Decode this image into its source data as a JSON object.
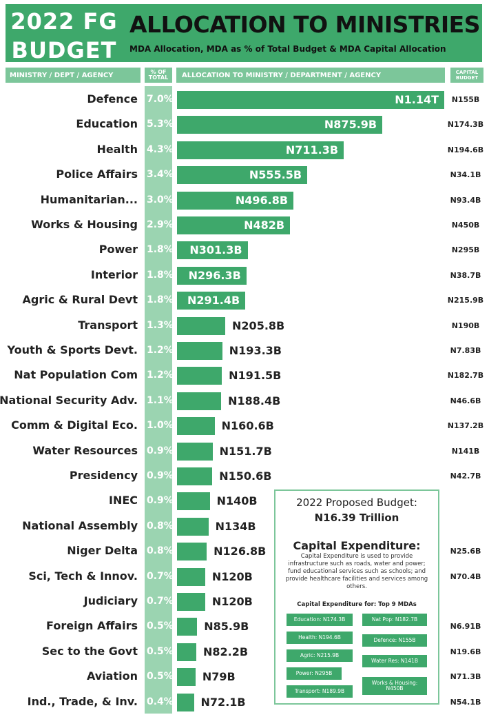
{
  "header": {
    "badge_line1": "2022 FG",
    "badge_line2": "BUDGET",
    "title": "ALLOCATION TO MINISTRIES",
    "subtitle": "MDA Allocation, MDA as % of Total Budget & MDA Capital Allocation"
  },
  "columns": {
    "ministry": "MINISTRY / DEPT / AGENCY",
    "pct": "% OF TOTAL",
    "allocation": "ALLOCATION TO MINISTRY / DEPARTMENT / AGENCY",
    "capital": "CAPITAL BUDGET"
  },
  "colors": {
    "bar": "#3ea86b",
    "header_band": "#7cc69a",
    "pct_strip": "#9bd4b1"
  },
  "chart_data": {
    "type": "bar",
    "orientation": "horizontal",
    "title": "ALLOCATION TO MINISTRIES",
    "unit": "billion naira",
    "xlim": [
      0,
      1140
    ],
    "categories": [
      "Defence",
      "Education",
      "Health",
      "Police Affairs",
      "Humanitarian...",
      "Works & Housing",
      "Power",
      "Interior",
      "Agric & Rural Devt",
      "Transport",
      "Youth & Sports Devt.",
      "Nat Population Com",
      "National Security Adv.",
      "Comm & Digital Eco.",
      "Water Resources",
      "Presidency",
      "INEC",
      "National Assembly",
      "Niger Delta",
      "Sci, Tech & Innov.",
      "Judiciary",
      "Foreign Affairs",
      "Sec to the Govt",
      "Aviation",
      "Ind., Trade, & Inv."
    ],
    "values": [
      1140,
      875.9,
      711.3,
      555.5,
      496.8,
      482,
      301.3,
      296.3,
      291.4,
      205.8,
      193.3,
      191.5,
      188.4,
      160.6,
      151.7,
      150.6,
      140,
      134,
      126.8,
      120,
      120,
      85.9,
      82.2,
      79,
      72.1
    ],
    "value_labels": [
      "N1.14T",
      "N875.9B",
      "N711.3B",
      "N555.5B",
      "N496.8B",
      "N482B",
      "N301.3B",
      "N296.3B",
      "N291.4B",
      "N205.8B",
      "N193.3B",
      "N191.5B",
      "N188.4B",
      "N160.6B",
      "N151.7B",
      "N150.6B",
      "N140B",
      "N134B",
      "N126.8B",
      "N120B",
      "N120B",
      "N85.9B",
      "N82.2B",
      "N79B",
      "N72.1B"
    ],
    "pct_of_total": [
      "7.0%",
      "5.3%",
      "4.3%",
      "3.4%",
      "3.0%",
      "2.9%",
      "1.8%",
      "1.8%",
      "1.8%",
      "1.3%",
      "1.2%",
      "1.2%",
      "1.1%",
      "1.0%",
      "0.9%",
      "0.9%",
      "0.9%",
      "0.8%",
      "0.8%",
      "0.7%",
      "0.7%",
      "0.5%",
      "0.5%",
      "0.5%",
      "0.4%"
    ],
    "capital_budget": [
      "N155B",
      "N174.3B",
      "N194.6B",
      "N34.1B",
      "N93.4B",
      "N450B",
      "N295B",
      "N38.7B",
      "N215.9B",
      "N190B",
      "N7.83B",
      "N182.7B",
      "N46.6B",
      "N137.2B",
      "N141B",
      "N42.7B",
      "",
      "",
      "N25.6B",
      "N70.4B",
      "",
      "N6.91B",
      "N19.6B",
      "N71.3B",
      "N54.1B"
    ]
  },
  "info_box": {
    "title": "2022 Proposed Budget:",
    "total": "N16.39 Trillion",
    "capex_title": "Capital Expenditure:",
    "capex_desc": "Capital Expenditure is used to provide infrastructure such as roads, water and power; fund educational services such as schools; and provide healthcare facilities and services among others.",
    "capex_top_label": "Capital Expenditure for: Top 9 MDAs",
    "chips": [
      {
        "label": "Education: N174.3B"
      },
      {
        "label": "Nat Pop: N182.7B"
      },
      {
        "label": "Health: N194.6B"
      },
      {
        "label": "Defence: N155B"
      },
      {
        "label": "Agric: N215.9B"
      },
      {
        "label": "Water Res: N141B"
      },
      {
        "label": "Power: N295B"
      },
      {
        "label": "Works & Housing: N450B"
      },
      {
        "label": "Transport: N189.9B"
      }
    ]
  }
}
